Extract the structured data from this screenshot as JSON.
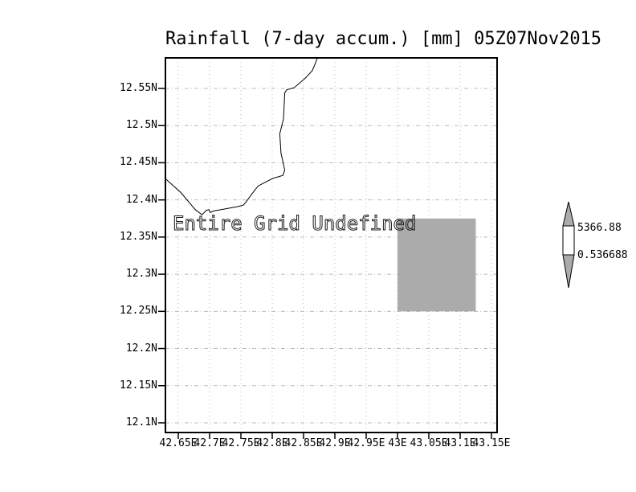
{
  "chart_data": {
    "type": "map",
    "title": "Rainfall (7-day accum.) [mm] 05Z07Nov2015",
    "annotation": "Entire Grid Undefined",
    "grid": "dotted",
    "grid_color": "#bcbcbc",
    "frame_color": "#000000",
    "x_axis": {
      "tick_labels": [
        "42.65E",
        "42.7E",
        "42.75E",
        "42.8E",
        "42.85E",
        "42.9E",
        "42.95E",
        "43E",
        "43.05E",
        "43.1E",
        "43.15E"
      ],
      "tick_values": [
        42.65,
        42.7,
        42.75,
        42.8,
        42.85,
        42.9,
        42.95,
        43.0,
        43.05,
        43.1,
        43.15
      ],
      "range": [
        42.6295,
        43.159
      ]
    },
    "y_axis": {
      "tick_labels": [
        "12.55N",
        "12.5N",
        "12.45N",
        "12.4N",
        "12.35N",
        "12.3N",
        "12.25N",
        "12.2N",
        "12.15N",
        "12.1N"
      ],
      "tick_values": [
        12.55,
        12.5,
        12.45,
        12.4,
        12.35,
        12.3,
        12.25,
        12.2,
        12.15,
        12.1
      ],
      "range": [
        12.091,
        12.591
      ]
    },
    "shaded_cell": {
      "lon_min": 43.0,
      "lon_max": 43.125,
      "lat_min": 12.25,
      "lat_max": 12.375,
      "color": "#ababab"
    },
    "coastline_lonlat": [
      [
        42.629,
        12.429
      ],
      [
        42.654,
        12.41
      ],
      [
        42.677,
        12.387
      ],
      [
        42.688,
        12.38
      ],
      [
        42.695,
        12.386
      ],
      [
        42.699,
        12.387
      ],
      [
        42.701,
        12.383
      ],
      [
        42.706,
        12.385
      ],
      [
        42.745,
        12.391
      ],
      [
        42.754,
        12.393
      ],
      [
        42.758,
        12.397
      ],
      [
        42.772,
        12.413
      ],
      [
        42.778,
        12.419
      ],
      [
        42.801,
        12.429
      ],
      [
        42.817,
        12.433
      ],
      [
        42.82,
        12.44
      ],
      [
        42.814,
        12.463
      ],
      [
        42.812,
        12.489
      ],
      [
        42.815,
        12.499
      ],
      [
        42.818,
        12.509
      ],
      [
        42.82,
        12.544
      ],
      [
        42.823,
        12.548
      ],
      [
        42.835,
        12.551
      ],
      [
        42.853,
        12.564
      ],
      [
        42.864,
        12.574
      ],
      [
        42.868,
        12.582
      ],
      [
        42.872,
        12.591
      ]
    ],
    "colorbar": {
      "top_label": "5366.88",
      "bottom_label": "0.536688",
      "top_value": 5366.88,
      "bottom_value": 0.536688,
      "arrow_fill": "#ababab",
      "bar_fill": "#ffffff",
      "outline": "#000000"
    }
  }
}
